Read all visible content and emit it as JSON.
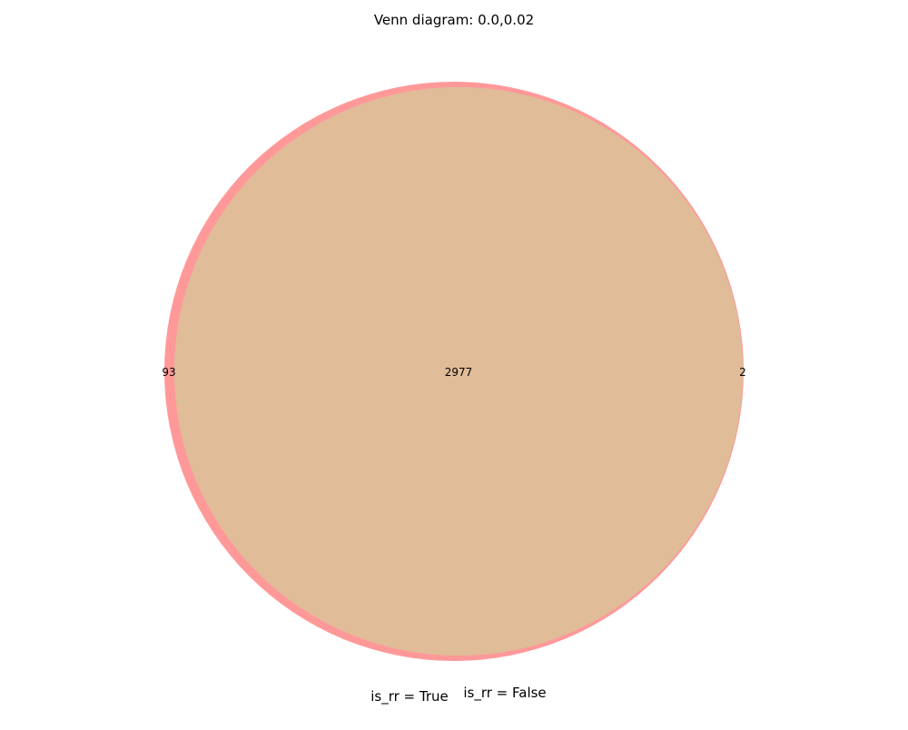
{
  "chart_data": {
    "type": "venn",
    "title": "Venn diagram: 0.0,0.02",
    "sets": [
      {
        "name": "is_rr = True",
        "color": "#ff9999",
        "only_count": "93"
      },
      {
        "name": "is_rr = False",
        "color": "#c8d4a0",
        "only_count": "2"
      }
    ],
    "intersection": {
      "count": "2977",
      "color": "#e0bc98"
    }
  }
}
